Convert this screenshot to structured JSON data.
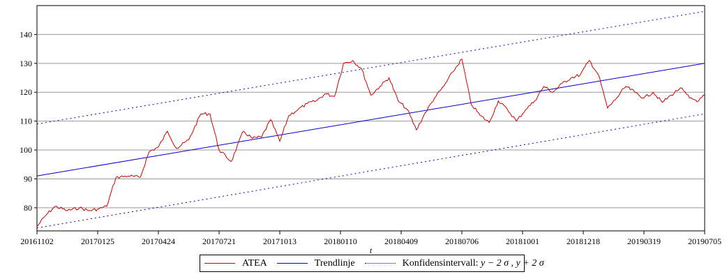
{
  "chart_data": {
    "type": "line",
    "title": "",
    "xlabel": "t",
    "ylabel": "",
    "ylim": [
      72,
      150
    ],
    "yticks": [
      80,
      90,
      100,
      110,
      120,
      130,
      140
    ],
    "x_tick_labels": [
      "20161102",
      "20170125",
      "20170424",
      "20170721",
      "20171013",
      "20180110",
      "20180409",
      "20180706",
      "20181001",
      "20181218",
      "20190319",
      "20190705"
    ],
    "grid": "horizontal",
    "legend_position": "bottom",
    "colors": {
      "atea": "#cc0000",
      "trend": "#0000cc",
      "band": "#0000cc"
    },
    "series": [
      {
        "name": "ATEA",
        "style": "solid",
        "x_index": [
          0,
          0.15,
          0.3,
          0.5,
          0.7,
          0.85,
          1.0,
          1.15,
          1.3,
          1.5,
          1.7,
          1.85,
          2.0,
          2.15,
          2.3,
          2.5,
          2.7,
          2.85,
          3.0,
          3.2,
          3.4,
          3.55,
          3.7,
          3.85,
          4.0,
          4.15,
          4.3,
          4.45,
          4.6,
          4.75,
          4.9,
          5.05,
          5.2,
          5.35,
          5.5,
          5.65,
          5.8,
          5.95,
          6.1,
          6.25,
          6.4,
          6.55,
          6.7,
          6.85,
          7.0,
          7.15,
          7.3,
          7.45,
          7.6,
          7.75,
          7.9,
          8.05,
          8.2,
          8.35,
          8.5,
          8.65,
          8.8,
          8.95,
          9.1,
          9.25,
          9.4,
          9.55,
          9.7,
          9.85,
          10.0,
          10.15,
          10.3,
          10.45,
          10.6,
          10.75,
          10.9,
          11.0
        ],
        "values": [
          73.5,
          77.5,
          80.5,
          79.0,
          80.0,
          79.0,
          79.5,
          80.5,
          90.5,
          91.0,
          90.5,
          99.5,
          101.0,
          106.5,
          100.5,
          103.5,
          112.5,
          112.5,
          100.0,
          96.0,
          106.5,
          104.0,
          104.5,
          110.5,
          103.0,
          112.0,
          114.0,
          116.0,
          117.0,
          119.5,
          118.5,
          130.0,
          131.0,
          128.0,
          119.0,
          122.0,
          125.0,
          117.0,
          114.0,
          107.0,
          113.0,
          118.0,
          122.0,
          127.0,
          131.5,
          116.0,
          112.0,
          109.5,
          117.0,
          114.0,
          110.0,
          114.0,
          117.0,
          122.0,
          120.0,
          123.0,
          125.0,
          126.0,
          131.0,
          126.0,
          114.5,
          118.0,
          122.0,
          120.0,
          118.0,
          120.0,
          116.5,
          119.0,
          121.5,
          118.0,
          117.0,
          119.0
        ]
      },
      {
        "name": "Trendlinje",
        "style": "solid",
        "x_index": [
          0,
          11
        ],
        "values": [
          91.0,
          130.0
        ]
      },
      {
        "name": "Konfidensintervall upper",
        "style": "dotted",
        "x_index": [
          0,
          11
        ],
        "values": [
          109.0,
          148.0
        ]
      },
      {
        "name": "Konfidensintervall lower",
        "style": "dotted",
        "x_index": [
          0,
          11
        ],
        "values": [
          73.0,
          112.5
        ]
      }
    ],
    "legend": [
      {
        "label": "ATEA",
        "color": "#cc0000",
        "style": "solid"
      },
      {
        "label": "Trendlinje",
        "color": "#0000cc",
        "style": "solid"
      },
      {
        "label": "Konfidensintervall: ",
        "math": "y − 2 σ , y + 2 σ",
        "color": "#0000cc",
        "style": "dotted"
      }
    ]
  }
}
